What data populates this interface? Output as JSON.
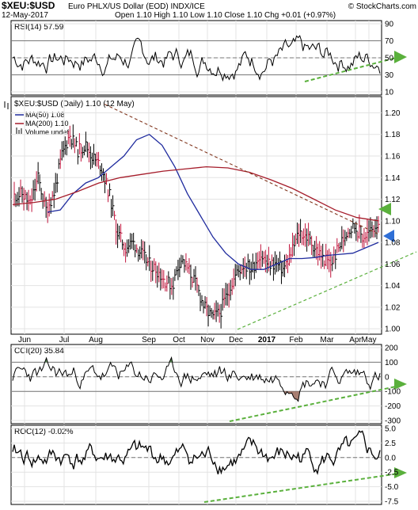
{
  "header": {
    "symbol": "$XEU:$USD",
    "description": "Euro PHLX/US Dollar (EOD) INDX/ICE",
    "watermark": "© StockCharts.com",
    "date": "12-May-2017",
    "ohlc": "Open 1.10  High 1.10  Low 1.10  Close 1.10  Chg +0.01 (+0.97%)"
  },
  "colors": {
    "price_up": "#000000",
    "price_down": "#c0143c",
    "ma50": "#1f2b9e",
    "ma200": "#a51c2a",
    "trend": "#7a2a10",
    "support": "#5ab03c",
    "arrow_green": "#5ab03c",
    "arrow_blue": "#2f6fd6",
    "fill_green": "#4f8a47",
    "fill_brown": "#9a6a5c"
  },
  "chart_data": [
    {
      "type": "line",
      "name": "RSI",
      "title": "RSI(14) 57.59",
      "ylim": [
        10,
        90
      ],
      "yticks": [
        10,
        30,
        50,
        70,
        90
      ],
      "reference_lines": [
        30,
        50,
        70
      ],
      "annotations": [
        "support trendline",
        "arrow at right edge"
      ]
    },
    {
      "type": "line",
      "name": "Price",
      "title": "$XEU:$USD (Daily) 1.10 (12 May)",
      "legend": [
        "MA(50) 1.08",
        "MA(200) 1.10",
        "Volume undef"
      ],
      "ylim": [
        0.995,
        1.215
      ],
      "yticks": [
        1.0,
        1.02,
        1.04,
        1.06,
        1.08,
        1.1,
        1.12,
        1.14,
        1.16,
        1.18,
        1.2
      ],
      "months": [
        "Jun",
        "Jul",
        "Aug",
        "Sep",
        "Oct",
        "Nov",
        "Dec",
        "2017",
        "Feb",
        "Mar",
        "Apr",
        "May"
      ],
      "price_path": [
        1.123,
        1.125,
        1.115,
        1.14,
        1.11,
        1.125,
        1.16,
        1.18,
        1.165,
        1.17,
        1.158,
        1.15,
        1.125,
        1.09,
        1.075,
        1.08,
        1.07,
        1.06,
        1.055,
        1.045,
        1.04,
        1.065,
        1.055,
        1.04,
        1.02,
        1.01,
        1.015,
        1.035,
        1.05,
        1.06,
        1.055,
        1.07,
        1.06,
        1.06,
        1.055,
        1.07,
        1.09,
        1.085,
        1.075,
        1.065,
        1.06,
        1.075,
        1.09,
        1.095,
        1.085,
        1.09,
        1.1
      ],
      "ma50": [
        1.108,
        1.11,
        1.125,
        1.135,
        1.14,
        1.15,
        1.16,
        1.175,
        1.18,
        1.17,
        1.15,
        1.125,
        1.105,
        1.085,
        1.07,
        1.06,
        1.055,
        1.055,
        1.06,
        1.065,
        1.065,
        1.066,
        1.068,
        1.069,
        1.07,
        1.075,
        1.08
      ],
      "ma200": [
        1.115,
        1.117,
        1.12,
        1.127,
        1.135,
        1.14,
        1.143,
        1.146,
        1.148,
        1.15,
        1.149,
        1.145,
        1.138,
        1.13,
        1.12,
        1.11,
        1.103,
        1.1
      ],
      "annotations": [
        "downtrend line from Aug high",
        "uptrend support line from Dec low",
        "green arrow near 1.12",
        "blue arrow near 1.09"
      ]
    },
    {
      "type": "line",
      "name": "CCI",
      "title": "CCI(20) 35.84",
      "ylim": [
        -300,
        200
      ],
      "yticks": [
        -300,
        -200,
        -100,
        0,
        100,
        200
      ],
      "reference_lines": [
        -100,
        0,
        100
      ]
    },
    {
      "type": "line",
      "name": "ROC",
      "title": "ROC(12) -0.02%",
      "ylim": [
        -7.5,
        5.0
      ],
      "yticks": [
        -7.5,
        -5.0,
        -2.5,
        0.0,
        2.5,
        5.0
      ],
      "reference_lines": [
        0
      ]
    }
  ]
}
